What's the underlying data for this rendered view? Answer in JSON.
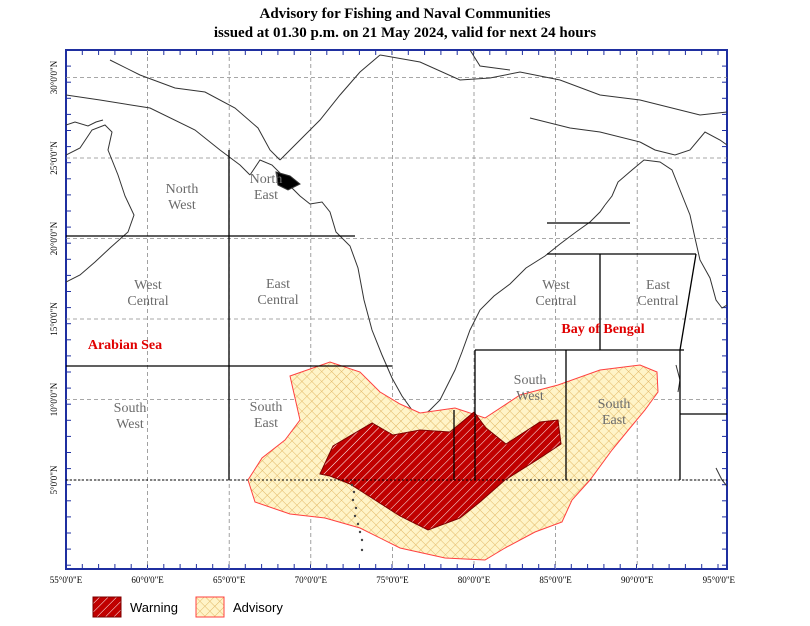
{
  "title": {
    "line1": "Advisory for Fishing and Naval Communities",
    "line2": "issued at 01.30 p.m.  on 21 May 2024, valid for next 24 hours"
  },
  "x_ticks": [
    "55°0'0\"E",
    "60°0'0\"E",
    "65°0'0\"E",
    "70°0'0\"E",
    "75°0'0\"E",
    "80°0'0\"E",
    "85°0'0\"E",
    "90°0'0\"E",
    "95°0'0\"E"
  ],
  "y_ticks": [
    "5°0'0\"N",
    "10°0'0\"N",
    "15°0'0\"N",
    "20°0'0\"N",
    "25°0'0\"N",
    "30°0'0\"N"
  ],
  "regions": {
    "north_west": "North\nWest",
    "north_east": "North\nEast",
    "west_central_as": "West\nCentral",
    "east_central_as": "East\nCentral",
    "south_west_as": "South\nWest",
    "south_east_as": "South\nEast",
    "west_central_bob": "West\nCentral",
    "east_central_bob": "East\nCentral",
    "south_west_bob": "South\nWest",
    "south_east_bob": "South\nEast"
  },
  "seas": {
    "arabian_sea": "Arabian Sea",
    "bay_of_bengal": "Bay of Bengal"
  },
  "legend": {
    "warning": "Warning",
    "advisory": "Advisory"
  },
  "colors": {
    "warning_fill": "#c00000",
    "advisory_fill": "#fff2bf",
    "advisory_hatch": "#e9c070",
    "border_red": "#ff2020",
    "frame_blue": "#1f2fa0",
    "sea_label": "#e00000",
    "region_label": "#6b6b6b"
  }
}
